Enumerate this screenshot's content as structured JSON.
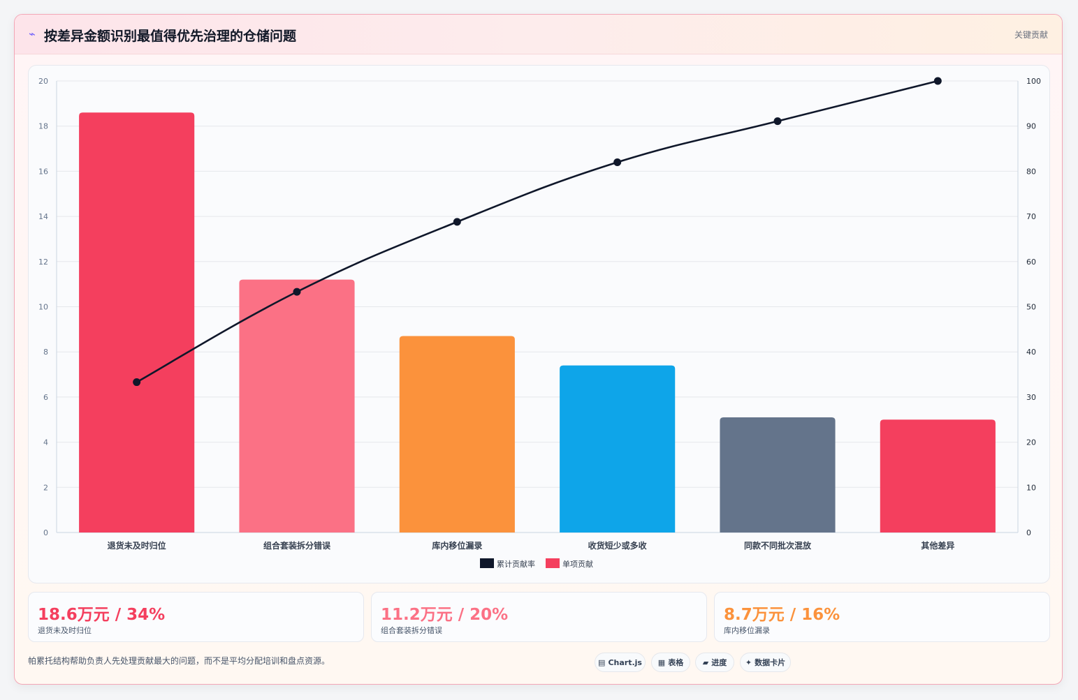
{
  "header": {
    "icon": "bolt-icon",
    "title": "按差异金额识别最值得优先治理的仓储问题",
    "tag": "关键贡献"
  },
  "chart_data": {
    "type": "bar",
    "categories": [
      "退货未及时归位",
      "组合套装拆分错误",
      "库内移位漏录",
      "收货短少或多收",
      "同款不同批次混放",
      "其他差异"
    ],
    "series": [
      {
        "name": "累计贡献率",
        "type": "line",
        "axis": "right",
        "color": "#0f172a",
        "values": [
          33.3,
          53.3,
          68.8,
          82.0,
          91.1,
          100
        ]
      },
      {
        "name": "单项贡献",
        "type": "bar",
        "axis": "left",
        "values": [
          18.6,
          11.2,
          8.7,
          7.4,
          5.1,
          5.0
        ],
        "colors": [
          "#f43f5e",
          "#fb7185",
          "#fb923c",
          "#0ea5e9",
          "#64748b",
          "#f43f5e"
        ]
      }
    ],
    "ylim": [
      0,
      20
    ],
    "y_ticks": [
      0,
      2,
      4,
      6,
      8,
      10,
      12,
      14,
      16,
      18,
      20
    ],
    "y2lim": [
      0,
      100
    ],
    "y2_ticks": [
      0,
      10,
      20,
      30,
      40,
      50,
      60,
      70,
      80,
      90,
      100
    ],
    "grid": true,
    "legend": "bottom",
    "legend_colors": {
      "line": "#0f172a",
      "bar": "#f43f5e"
    }
  },
  "kpis": [
    {
      "value": "18.6万元 / 34%",
      "label": "退货未及时归位",
      "color": "#f43f5e"
    },
    {
      "value": "11.2万元 / 20%",
      "label": "组合套装拆分错误",
      "color": "#fb7185"
    },
    {
      "value": "8.7万元 / 16%",
      "label": "库内移位漏录",
      "color": "#fb923c"
    }
  ],
  "footnote": "帕累托结构帮助负责人先处理贡献最大的问题，而不是平均分配培训和盘点资源。",
  "pills": [
    {
      "icon": "chart-icon",
      "label": "Chart.js"
    },
    {
      "icon": "table-icon",
      "label": "表格"
    },
    {
      "icon": "progress-icon",
      "label": "进度"
    },
    {
      "icon": "sparkle-icon",
      "label": "数据卡片"
    }
  ]
}
